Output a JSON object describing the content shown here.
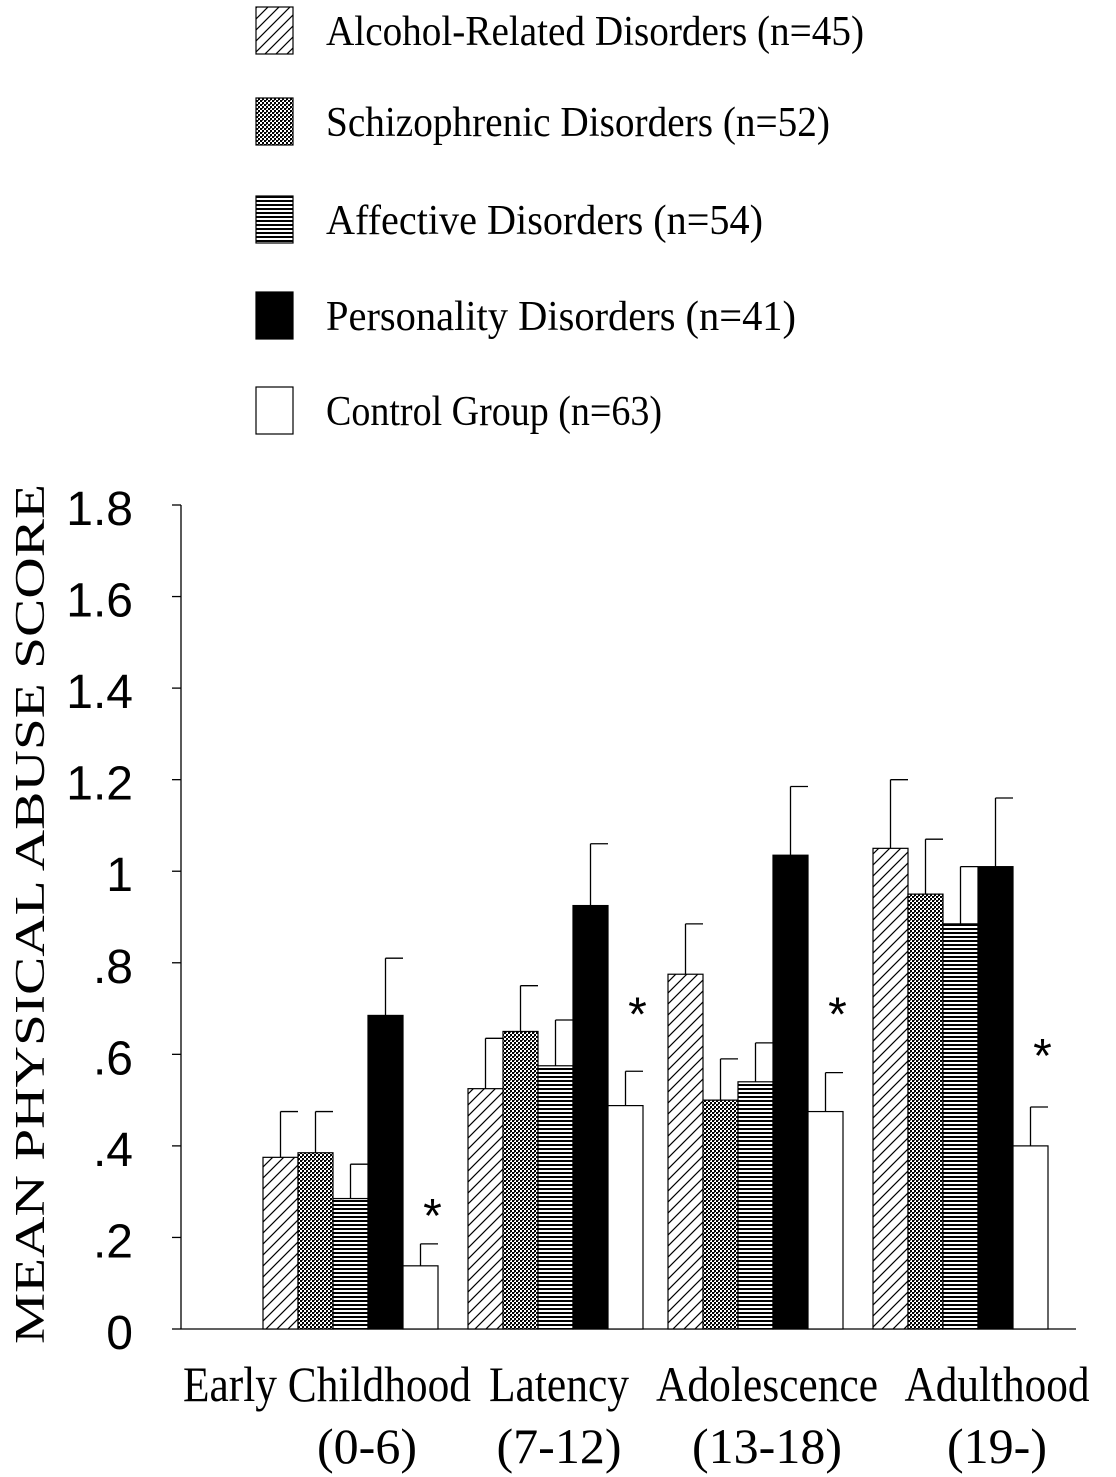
{
  "chart_data": {
    "type": "bar",
    "ylabel": "MEAN PHYSICAL ABUSE SCORE",
    "ylim": [
      0,
      1.8
    ],
    "yticks": [
      {
        "value": 0,
        "label": "0"
      },
      {
        "value": 0.2,
        "label": ".2"
      },
      {
        "value": 0.4,
        "label": ".4"
      },
      {
        "value": 0.6,
        "label": ".6"
      },
      {
        "value": 0.8,
        "label": ".8"
      },
      {
        "value": 1.0,
        "label": "1"
      },
      {
        "value": 1.2,
        "label": "1.2"
      },
      {
        "value": 1.4,
        "label": "1.4"
      },
      {
        "value": 1.6,
        "label": "1.6"
      },
      {
        "value": 1.8,
        "label": "1.8"
      }
    ],
    "categories": [
      {
        "name": "Early Childhood",
        "range": "(0-6)"
      },
      {
        "name": "Latency",
        "range": "(7-12)"
      },
      {
        "name": "Adolescence",
        "range": "(13-18)"
      },
      {
        "name": "Adulthood",
        "range": "(19-)"
      }
    ],
    "series": [
      {
        "name": "Alcohol-Related Disorders (n=45)",
        "pattern": "diagonal",
        "values": [
          0.375,
          0.525,
          0.775,
          1.05
        ],
        "errors": [
          0.1,
          0.11,
          0.11,
          0.15
        ]
      },
      {
        "name": "Schizophrenic Disorders (n=52)",
        "pattern": "dots",
        "values": [
          0.385,
          0.65,
          0.5,
          0.95
        ],
        "errors": [
          0.09,
          0.1,
          0.09,
          0.12
        ]
      },
      {
        "name": "Affective Disorders (n=54)",
        "pattern": "horizontal",
        "values": [
          0.285,
          0.575,
          0.54,
          0.885
        ],
        "errors": [
          0.075,
          0.1,
          0.085,
          0.125
        ]
      },
      {
        "name": "Personality Disorders (n=41)",
        "pattern": "solid",
        "values": [
          0.685,
          0.925,
          1.035,
          1.01
        ],
        "errors": [
          0.125,
          0.135,
          0.15,
          0.15
        ]
      },
      {
        "name": "Control Group (n=63)",
        "pattern": "empty",
        "values": [
          0.138,
          0.488,
          0.475,
          0.4
        ],
        "errors": [
          0.048,
          0.075,
          0.085,
          0.085
        ]
      }
    ],
    "annotations": [
      {
        "text": "*",
        "category": 0,
        "value": 0.26
      },
      {
        "text": "*",
        "category": 1,
        "value": 0.7
      },
      {
        "text": "*",
        "category": 2,
        "value": 0.7
      },
      {
        "text": "*",
        "category": 3,
        "value": 0.61
      }
    ],
    "legend_position": "top",
    "grid": false,
    "colors": {
      "ink": "#000000",
      "paper": "#ffffff"
    }
  }
}
